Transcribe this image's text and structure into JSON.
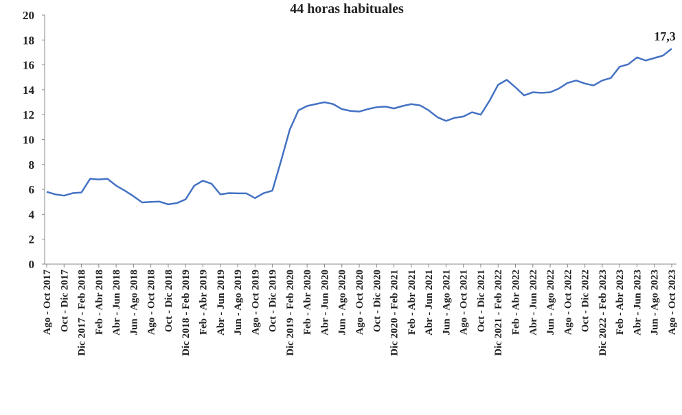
{
  "chart_data": {
    "type": "line",
    "title": "44 horas habituales",
    "categories": [
      "Ago - Oct 2017",
      null,
      "Oct - Dic 2017",
      null,
      "Dic 2017 - Feb 2018",
      null,
      "Feb - Abr 2018",
      null,
      "Abr - Jun 2018",
      null,
      "Jun - Ago 2018",
      null,
      "Ago - Oct 2018",
      null,
      "Oct - Dic 2018",
      null,
      "Dic 2018 - Feb 2019",
      null,
      "Feb - Abr 2019",
      null,
      "Abr - Jun 2019",
      null,
      "Jun - Ago 2019",
      null,
      "Ago - Oct 2019",
      null,
      "Oct - Dic 2019",
      null,
      "Dic 2019 - Feb 2020",
      null,
      "Feb - Abr 2020",
      null,
      "Abr - Jun 2020",
      null,
      "Jun - Ago 2020",
      null,
      "Ago - Oct 2020",
      null,
      "Oct - Dic 2020",
      null,
      "Dic 2020 - Feb 2021",
      null,
      "Feb - Abr 2021",
      null,
      "Abr - Jun 2021",
      null,
      "Jun - Ago 2021",
      null,
      "Ago - Oct 2021",
      null,
      "Oct - Dic 2021",
      null,
      "Dic 2021 - Feb 2022",
      null,
      "Feb - Abr 2022",
      null,
      "Abr - Jun 2022",
      null,
      "Jun - Ago 2022",
      null,
      "Ago - Oct 2022",
      null,
      "Oct - Dic 2022",
      null,
      "Dic 2022 - Feb 2023",
      null,
      "Feb - Abr 2023",
      null,
      "Abr - Jun 2023",
      null,
      "Jun - Ago 2023",
      null,
      "Ago - Oct 2023"
    ],
    "values": [
      5.8,
      5.6,
      5.5,
      5.7,
      5.75,
      6.85,
      6.8,
      6.85,
      6.3,
      5.9,
      5.45,
      4.95,
      5.0,
      5.02,
      4.8,
      4.9,
      5.2,
      6.3,
      6.7,
      6.45,
      5.6,
      5.7,
      5.68,
      5.68,
      5.3,
      5.7,
      5.9,
      8.3,
      10.8,
      12.35,
      12.7,
      12.85,
      13.0,
      12.85,
      12.45,
      12.3,
      12.25,
      12.45,
      12.6,
      12.65,
      12.5,
      12.7,
      12.85,
      12.75,
      12.35,
      11.8,
      11.5,
      11.75,
      11.85,
      12.2,
      12.0,
      13.1,
      14.4,
      14.8,
      14.2,
      13.55,
      13.8,
      13.75,
      13.8,
      14.1,
      14.55,
      14.75,
      14.5,
      14.35,
      14.75,
      14.95,
      15.85,
      16.05,
      16.6,
      16.35,
      16.55,
      16.75,
      17.3
    ],
    "value_labels": [
      null,
      null,
      null,
      null,
      null,
      null,
      null,
      null,
      null,
      null,
      null,
      null,
      null,
      null,
      null,
      null,
      null,
      null,
      null,
      null,
      null,
      null,
      null,
      null,
      null,
      null,
      null,
      null,
      null,
      null,
      null,
      null,
      null,
      null,
      null,
      null,
      null,
      null,
      null,
      null,
      null,
      null,
      null,
      null,
      null,
      null,
      null,
      null,
      null,
      null,
      null,
      null,
      null,
      null,
      null,
      null,
      null,
      null,
      null,
      null,
      null,
      null,
      null,
      null,
      null,
      null,
      null,
      null,
      null,
      null,
      null,
      null,
      "17,3"
    ],
    "color": "#4472c4",
    "ylim": [
      0,
      20
    ],
    "yticks": [
      0,
      2,
      4,
      6,
      8,
      10,
      12,
      14,
      16,
      18,
      20
    ],
    "grid": false
  }
}
